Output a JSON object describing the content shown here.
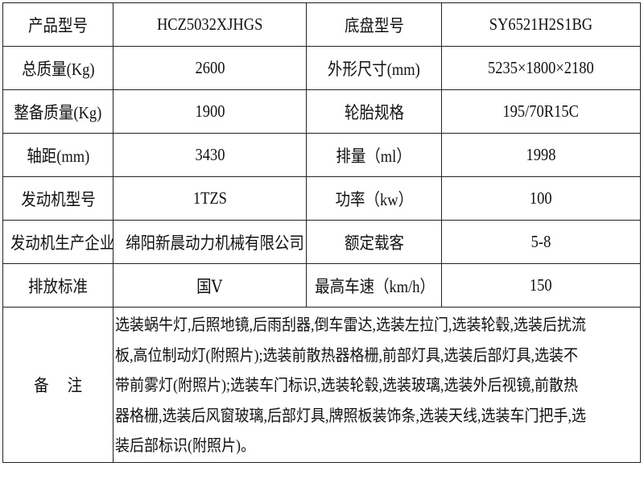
{
  "rows": [
    [
      "产品型号",
      "HCZ5032XJHGS",
      "底盘型号",
      "SY6521H2S1BG"
    ],
    [
      "总质量(Kg)",
      "2600",
      "外形尺寸(mm)",
      "5235×1800×2180"
    ],
    [
      "整备质量(Kg)",
      "1900",
      "轮胎规格",
      "195/70R15C"
    ],
    [
      "轴距(mm)",
      "3430",
      "排量（ml）",
      "1998"
    ],
    [
      "发动机型号",
      "1TZS",
      "功率（kw）",
      "100"
    ],
    [
      "发动机生产企业",
      "绵阳新晨动力机械有限公司",
      "额定载客",
      "5-8"
    ],
    [
      "排放标准",
      "国Ⅴ",
      "最高车速（km/h）",
      "150"
    ]
  ],
  "remarks": {
    "label": "备　 注",
    "lines": [
      "选装蜗牛灯,后照地镜,后雨刮器,倒车雷达,选装左拉门,选装轮毂,选装后扰流",
      "板,高位制动灯(附照片);选装前散热器格栅,前部灯具,选装后部灯具,选装不",
      "带前雾灯(附照片);选装车门标识,选装轮毂,选装玻璃,选装外后视镜,前散热",
      "器格栅,选装后风窗玻璃,后部灯具,牌照板装饰条,选装天线,选装车门把手,选",
      "装后部标识(附照片)。"
    ]
  }
}
